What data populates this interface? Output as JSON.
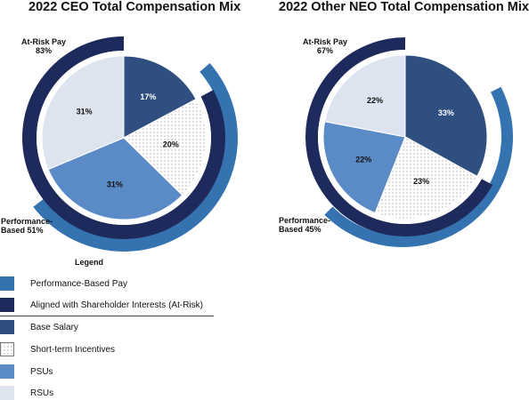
{
  "colors": {
    "perf_band": "#3572b0",
    "atrisk_band": "#1f2a5c",
    "base_salary": "#2f4f80",
    "psus": "#5b8bc6",
    "rsus": "#dde4ef",
    "sti_dots": "#555555"
  },
  "legend": {
    "title": "Legend",
    "items": [
      {
        "label": "Performance-Based Pay",
        "swatch": "perf"
      },
      {
        "label": "Aligned with Shareholder Interests (At-Risk)",
        "swatch": "atrisk"
      },
      {
        "label": "Base Salary",
        "swatch": "base"
      },
      {
        "label": "Short-term Incentives",
        "swatch": "sti"
      },
      {
        "label": "PSUs",
        "swatch": "psu"
      },
      {
        "label": "RSUs",
        "swatch": "rsu"
      }
    ]
  },
  "chart_data": [
    {
      "type": "pie",
      "title": "2022 CEO Total Compensation Mix",
      "categories": [
        "Base Salary",
        "Short-term Incentives",
        "PSUs",
        "RSUs"
      ],
      "values": [
        17,
        20,
        31,
        31
      ],
      "labels": [
        "17%",
        "20%",
        "31%",
        "31%"
      ],
      "bands": [
        {
          "name": "At-Risk Pay",
          "value": 83,
          "label": "At-Risk Pay",
          "value_label": "83%"
        },
        {
          "name": "Performance-Based",
          "value": 51,
          "label": "Performance-",
          "label2": "Based 51%"
        }
      ]
    },
    {
      "type": "pie",
      "title": "2022 Other NEO Total Compensation Mix",
      "categories": [
        "Base Salary",
        "Short-term Incentives",
        "PSUs",
        "RSUs"
      ],
      "values": [
        33,
        23,
        22,
        22
      ],
      "labels": [
        "33%",
        "23%",
        "22%",
        "22%"
      ],
      "bands": [
        {
          "name": "At-Risk Pay",
          "value": 67,
          "label": "At-Risk Pay",
          "value_label": "67%"
        },
        {
          "name": "Performance-Based",
          "value": 45,
          "label": "Performance-",
          "label2": "Based 45%"
        }
      ]
    }
  ]
}
